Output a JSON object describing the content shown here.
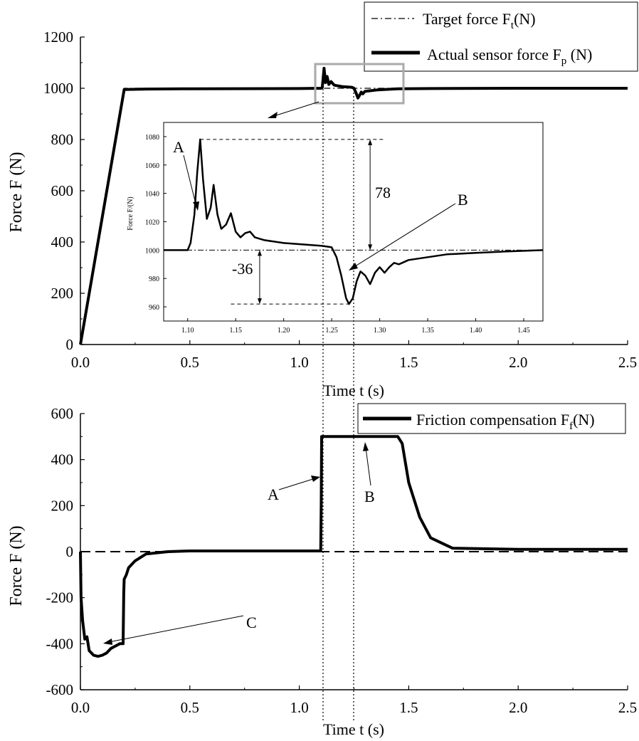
{
  "chart_data": [
    {
      "type": "line",
      "xlabel": "Time  t (s)",
      "ylabel": "Force  F (N)",
      "xlim": [
        0,
        2.5
      ],
      "ylim": [
        0,
        1200
      ],
      "xticks": [
        "0.0",
        "0.5",
        "1.0",
        "1.5",
        "2.0",
        "2.5"
      ],
      "yticks": [
        "0",
        "200",
        "400",
        "600",
        "800",
        "1000",
        "1200"
      ],
      "grid": false,
      "legend_position": "top-right",
      "series": [
        {
          "name": "Target force  F_t (N)",
          "legend_main": "Target force  F",
          "legend_sub": "t",
          "legend_tail": "(N)",
          "style": "dash-dot",
          "x": [
            0.0,
            0.2,
            2.5
          ],
          "y": [
            0,
            1000,
            1000
          ]
        },
        {
          "name": "Actual sensor force  F_p (N)",
          "legend_main": "Actual sensor force  F",
          "legend_sub": "p",
          "legend_tail": " (N)",
          "style": "thick-solid",
          "x": [
            0.0,
            0.2,
            0.3,
            0.5,
            1.0,
            1.1,
            1.105,
            1.113,
            1.12,
            1.127,
            1.135,
            1.145,
            1.16,
            1.2,
            1.24,
            1.25,
            1.26,
            1.268,
            1.275,
            1.283,
            1.29,
            1.3,
            1.32,
            1.36,
            1.45,
            1.6,
            2.0,
            2.5
          ],
          "y": [
            0,
            995,
            997,
            998,
            999,
            1000,
            1003,
            1078,
            1022,
            1046,
            1015,
            1026,
            1012,
            1006,
            1004,
            1000,
            980,
            962,
            972,
            985,
            978,
            988,
            990,
            994,
            998,
            999,
            1000,
            1000
          ]
        }
      ],
      "inset": {
        "xlim": [
          1.075,
          1.47
        ],
        "ylim": [
          950,
          1090
        ],
        "xlabel": "",
        "ylabel": "Force  F/(N)",
        "xticks": [
          "1.10",
          "1.15",
          "1.20",
          "1.25",
          "1.30",
          "1.35",
          "1.40",
          "1.45"
        ],
        "yticks": [
          "960",
          "980",
          "1000",
          "1020",
          "1040",
          "1060",
          "1080"
        ],
        "series_x": [
          1.075,
          1.1,
          1.103,
          1.107,
          1.11,
          1.113,
          1.116,
          1.12,
          1.124,
          1.127,
          1.131,
          1.135,
          1.14,
          1.145,
          1.15,
          1.155,
          1.16,
          1.165,
          1.17,
          1.18,
          1.2,
          1.22,
          1.24,
          1.25,
          1.255,
          1.26,
          1.265,
          1.268,
          1.272,
          1.276,
          1.28,
          1.285,
          1.29,
          1.295,
          1.3,
          1.305,
          1.31,
          1.315,
          1.32,
          1.33,
          1.34,
          1.35,
          1.37,
          1.4,
          1.43,
          1.47
        ],
        "series_y": [
          1000,
          1000,
          1005,
          1025,
          1055,
          1078,
          1050,
          1022,
          1030,
          1046,
          1025,
          1015,
          1018,
          1026,
          1013,
          1009,
          1012,
          1013,
          1009,
          1007,
          1005,
          1004,
          1003,
          1002,
          995,
          982,
          966,
          962,
          966,
          978,
          985,
          982,
          976,
          984,
          988,
          984,
          988,
          991,
          990,
          993,
          994,
          995,
          997,
          998,
          999,
          1000
        ],
        "target_y": 1000,
        "annotations": [
          "A",
          "B",
          "78",
          "-36"
        ]
      }
    },
    {
      "type": "line",
      "xlabel": "Time  t (s)",
      "ylabel": "Force  F (N)",
      "xlim": [
        0,
        2.5
      ],
      "ylim": [
        -600,
        600
      ],
      "xticks": [
        "0.0",
        "0.5",
        "1.0",
        "1.5",
        "2.0",
        "2.5"
      ],
      "yticks": [
        "-600",
        "-400",
        "-200",
        "0",
        "200",
        "400",
        "600"
      ],
      "grid": false,
      "legend_position": "top-right",
      "series": [
        {
          "name": "Friction compensation  F_f (N)",
          "legend_main": "Friction compensation  F",
          "legend_sub": "f",
          "legend_tail": "(N)",
          "style": "thick-solid",
          "x": [
            0.0,
            0.003,
            0.01,
            0.02,
            0.03,
            0.04,
            0.05,
            0.06,
            0.08,
            0.1,
            0.12,
            0.14,
            0.16,
            0.18,
            0.195,
            0.198,
            0.2,
            0.21,
            0.22,
            0.25,
            0.3,
            0.4,
            0.5,
            0.7,
            1.0,
            1.098,
            1.1,
            1.102,
            1.25,
            1.45,
            1.47,
            1.5,
            1.55,
            1.6,
            1.7,
            2.0,
            2.5
          ],
          "y": [
            0,
            -200,
            -300,
            -380,
            -370,
            -430,
            -440,
            -450,
            -455,
            -450,
            -440,
            -420,
            -410,
            -400,
            -400,
            -180,
            -120,
            -100,
            -70,
            -40,
            -10,
            0,
            3,
            3,
            3,
            3,
            200,
            500,
            500,
            500,
            470,
            300,
            150,
            60,
            15,
            10,
            10
          ]
        },
        {
          "name": "zero reference",
          "style": "dashed",
          "x": [
            0,
            2.5
          ],
          "y": [
            0,
            0
          ]
        }
      ],
      "annotations": [
        "A",
        "B",
        "C"
      ]
    }
  ]
}
